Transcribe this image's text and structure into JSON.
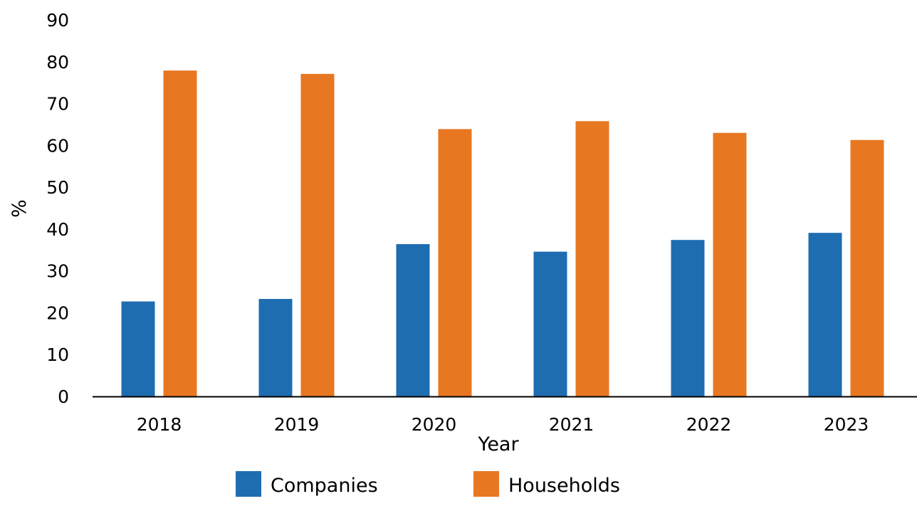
{
  "chart_data": {
    "type": "bar",
    "title": "",
    "xlabel": "Year",
    "ylabel": "%",
    "categories": [
      "2018",
      "2019",
      "2020",
      "2021",
      "2022",
      "2023"
    ],
    "series": [
      {
        "name": "Companies",
        "color": "#1f6db1",
        "values": [
          22.7,
          23.3,
          36.4,
          34.6,
          37.4,
          39.1
        ]
      },
      {
        "name": "Households",
        "color": "#e87722",
        "values": [
          77.9,
          77.1,
          63.9,
          65.8,
          63.0,
          61.3
        ]
      }
    ],
    "ylim": [
      0,
      90
    ],
    "yticks": [
      "0",
      "10",
      "20",
      "30",
      "40",
      "50",
      "60",
      "70",
      "80",
      "90"
    ],
    "grid": false,
    "legend_position": "bottom"
  }
}
